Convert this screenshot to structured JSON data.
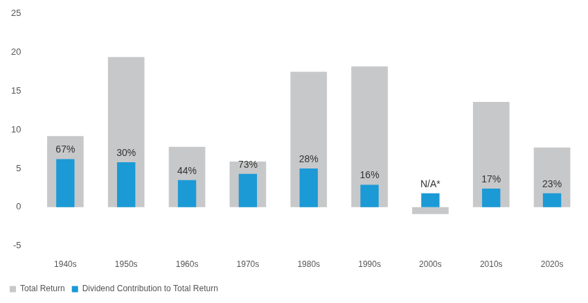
{
  "chart_data": {
    "type": "bar",
    "categories": [
      "1940s",
      "1950s",
      "1960s",
      "1970s",
      "1980s",
      "1990s",
      "2000s",
      "2010s",
      "2020s"
    ],
    "series": [
      {
        "name": "Total Return",
        "color": "#c7c8c9",
        "values": [
          9.2,
          19.4,
          7.8,
          5.9,
          17.5,
          18.2,
          -0.9,
          13.6,
          7.7
        ]
      },
      {
        "name": "Dividend Contribution to Total Return",
        "color": "#1b9ad6",
        "values": [
          6.2,
          5.8,
          3.5,
          4.3,
          5.0,
          2.9,
          1.8,
          2.4,
          1.8
        ],
        "point_labels": [
          "67%",
          "30%",
          "44%",
          "73%",
          "28%",
          "16%",
          "N/A*",
          "17%",
          "23%"
        ]
      }
    ],
    "ylim": [
      -5,
      25
    ],
    "yticks": [
      -5,
      0,
      5,
      10,
      15,
      20,
      25
    ],
    "grid": false,
    "legend": "bottom"
  }
}
